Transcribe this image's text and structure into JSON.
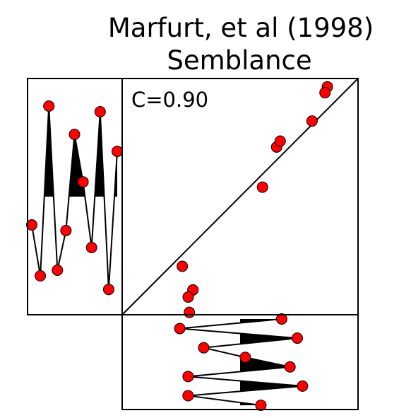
{
  "chart_data": {
    "type": "scatter",
    "title": "Marfurt, et al (1998)",
    "subtitle": "Semblance",
    "annotation": "C=0.90",
    "grid": false,
    "marker_color": "#ff0000",
    "fill_color": "#000000",
    "trace_a": [
      -0.25,
      -0.7,
      0.8,
      -0.65,
      -0.3,
      0.55,
      0.13,
      -0.45,
      0.75,
      -0.82,
      0.4
    ],
    "trace_b": [
      0.4,
      -0.58,
      0.55,
      -0.35,
      0.05,
      0.48,
      -0.5,
      0.6,
      -0.5,
      0.2
    ],
    "scatter_xlim": [
      -1,
      1
    ],
    "scatter_ylim": [
      -1,
      1
    ],
    "scatter_points": [
      {
        "x": 0.74,
        "y": 0.93
      },
      {
        "x": 0.72,
        "y": 0.88
      },
      {
        "x": 0.61,
        "y": 0.64
      },
      {
        "x": 0.19,
        "y": 0.08
      },
      {
        "x": 0.31,
        "y": 0.42
      },
      {
        "x": 0.34,
        "y": 0.47
      },
      {
        "x": -0.49,
        "y": -0.59
      },
      {
        "x": -0.43,
        "y": -0.98
      },
      {
        "x": -0.4,
        "y": -0.79
      },
      {
        "x": -0.44,
        "y": -0.85
      }
    ]
  }
}
